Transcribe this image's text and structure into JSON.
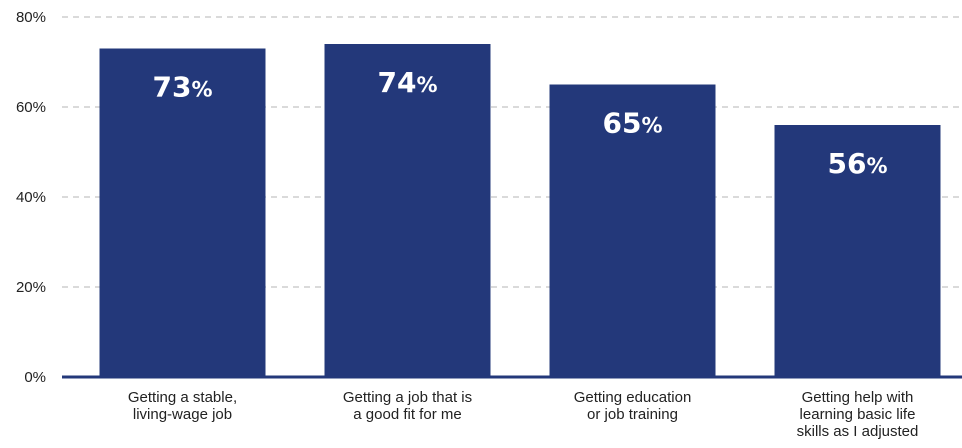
{
  "chart_data": {
    "type": "bar",
    "categories": [
      [
        "Getting a stable,",
        "living-wage job"
      ],
      [
        "Getting a job that is",
        "a good fit for me"
      ],
      [
        "Getting education",
        "or job training"
      ],
      [
        "Getting help with",
        "learning basic life",
        "skills as I adjusted"
      ]
    ],
    "values": [
      73,
      74,
      65,
      56
    ],
    "value_labels": [
      "73",
      "74",
      "65",
      "56"
    ],
    "value_suffix": "%",
    "yticks": [
      "0%",
      "20%",
      "40%",
      "60%",
      "80%"
    ],
    "ytick_values": [
      0,
      20,
      40,
      60,
      80
    ],
    "ylim": [
      0,
      80
    ],
    "grid": true,
    "bar_color": "#23387a",
    "label_color": "#ffffff"
  }
}
